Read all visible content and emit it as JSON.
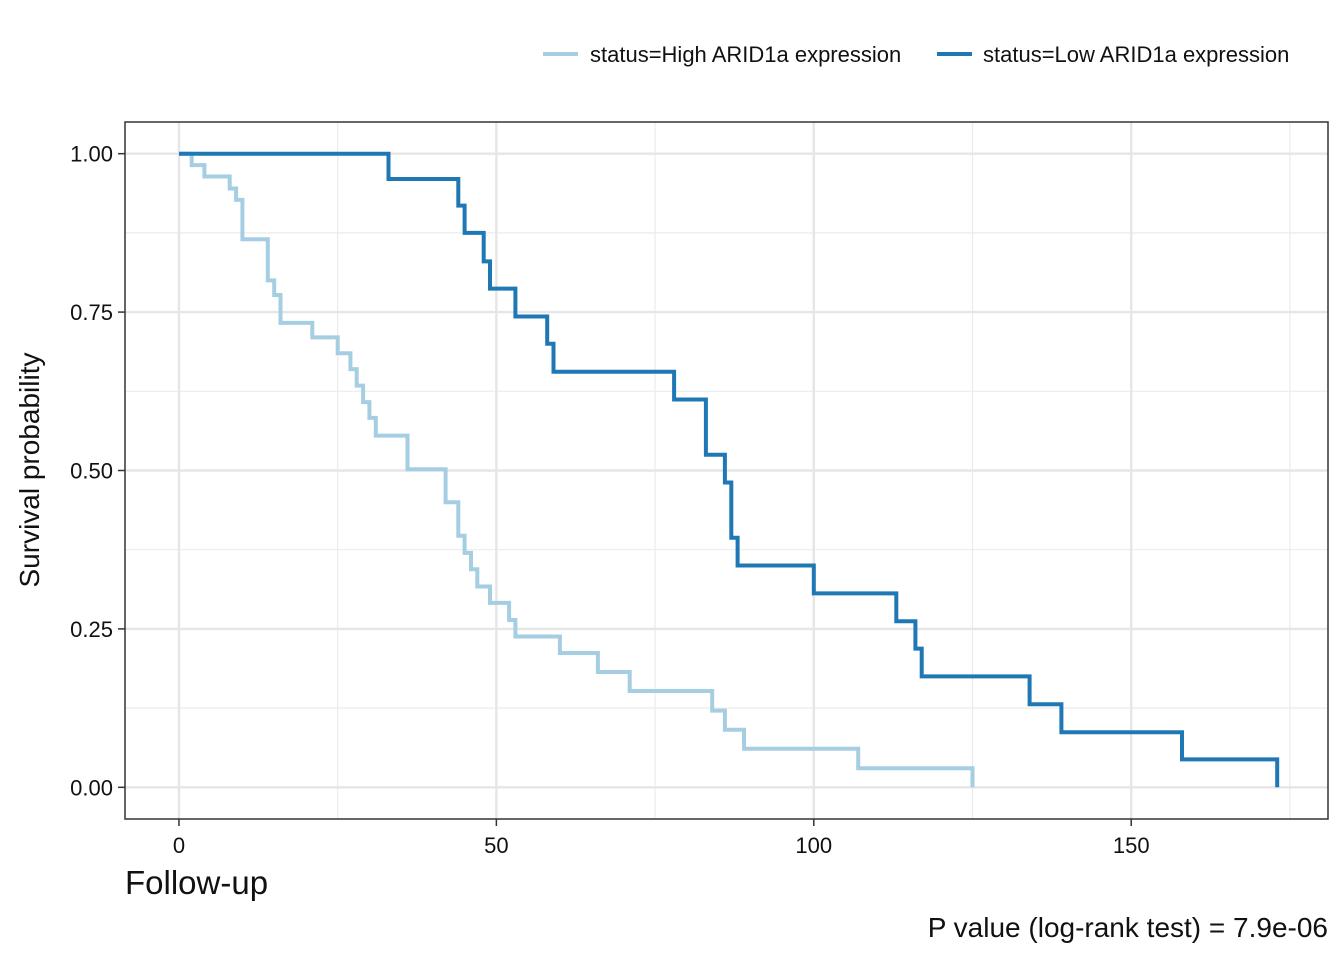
{
  "chart_data": {
    "type": "line",
    "xlabel": "Follow-up",
    "ylabel": "Survival probability",
    "caption": "P value (log-rank test) = 7.9e-06",
    "xlim": [
      -8.5,
      181
    ],
    "ylim": [
      -0.05,
      1.05
    ],
    "x_ticks": [
      0,
      50,
      100,
      150
    ],
    "x_tick_labels": [
      "0",
      "50",
      "100",
      "150"
    ],
    "y_ticks": [
      0,
      0.25,
      0.5,
      0.75,
      1.0
    ],
    "y_tick_labels": [
      "0.00",
      "0.25",
      "0.50",
      "0.75",
      "1.00"
    ],
    "grid": true,
    "legend_position": "top",
    "series": [
      {
        "name": "status=High ARID1a expression",
        "color": "#a6cee3",
        "x": [
          0,
          2,
          4,
          8,
          9,
          10,
          14,
          15,
          16,
          21,
          25,
          27,
          28,
          29,
          30,
          31,
          36,
          42,
          44,
          45,
          46,
          47,
          49,
          52,
          53,
          60,
          66,
          71,
          84,
          86,
          89,
          107,
          125
        ],
        "y": [
          1.0,
          0.982,
          0.964,
          0.945,
          0.927,
          0.865,
          0.8,
          0.777,
          0.733,
          0.71,
          0.685,
          0.66,
          0.634,
          0.608,
          0.583,
          0.555,
          0.502,
          0.45,
          0.397,
          0.37,
          0.344,
          0.317,
          0.291,
          0.264,
          0.238,
          0.212,
          0.182,
          0.152,
          0.121,
          0.091,
          0.061,
          0.03,
          0.0
        ]
      },
      {
        "name": "status=Low ARID1a expression",
        "color": "#1f78b4",
        "x": [
          0,
          33,
          44,
          45,
          48,
          49,
          53,
          58,
          59,
          78,
          83,
          86,
          87,
          88,
          100,
          113,
          116,
          117,
          134,
          139,
          158,
          173
        ],
        "y": [
          1.0,
          0.96,
          0.918,
          0.875,
          0.83,
          0.787,
          0.743,
          0.7,
          0.656,
          0.612,
          0.525,
          0.481,
          0.394,
          0.35,
          0.306,
          0.262,
          0.219,
          0.175,
          0.131,
          0.087,
          0.044,
          0.0
        ]
      }
    ]
  }
}
